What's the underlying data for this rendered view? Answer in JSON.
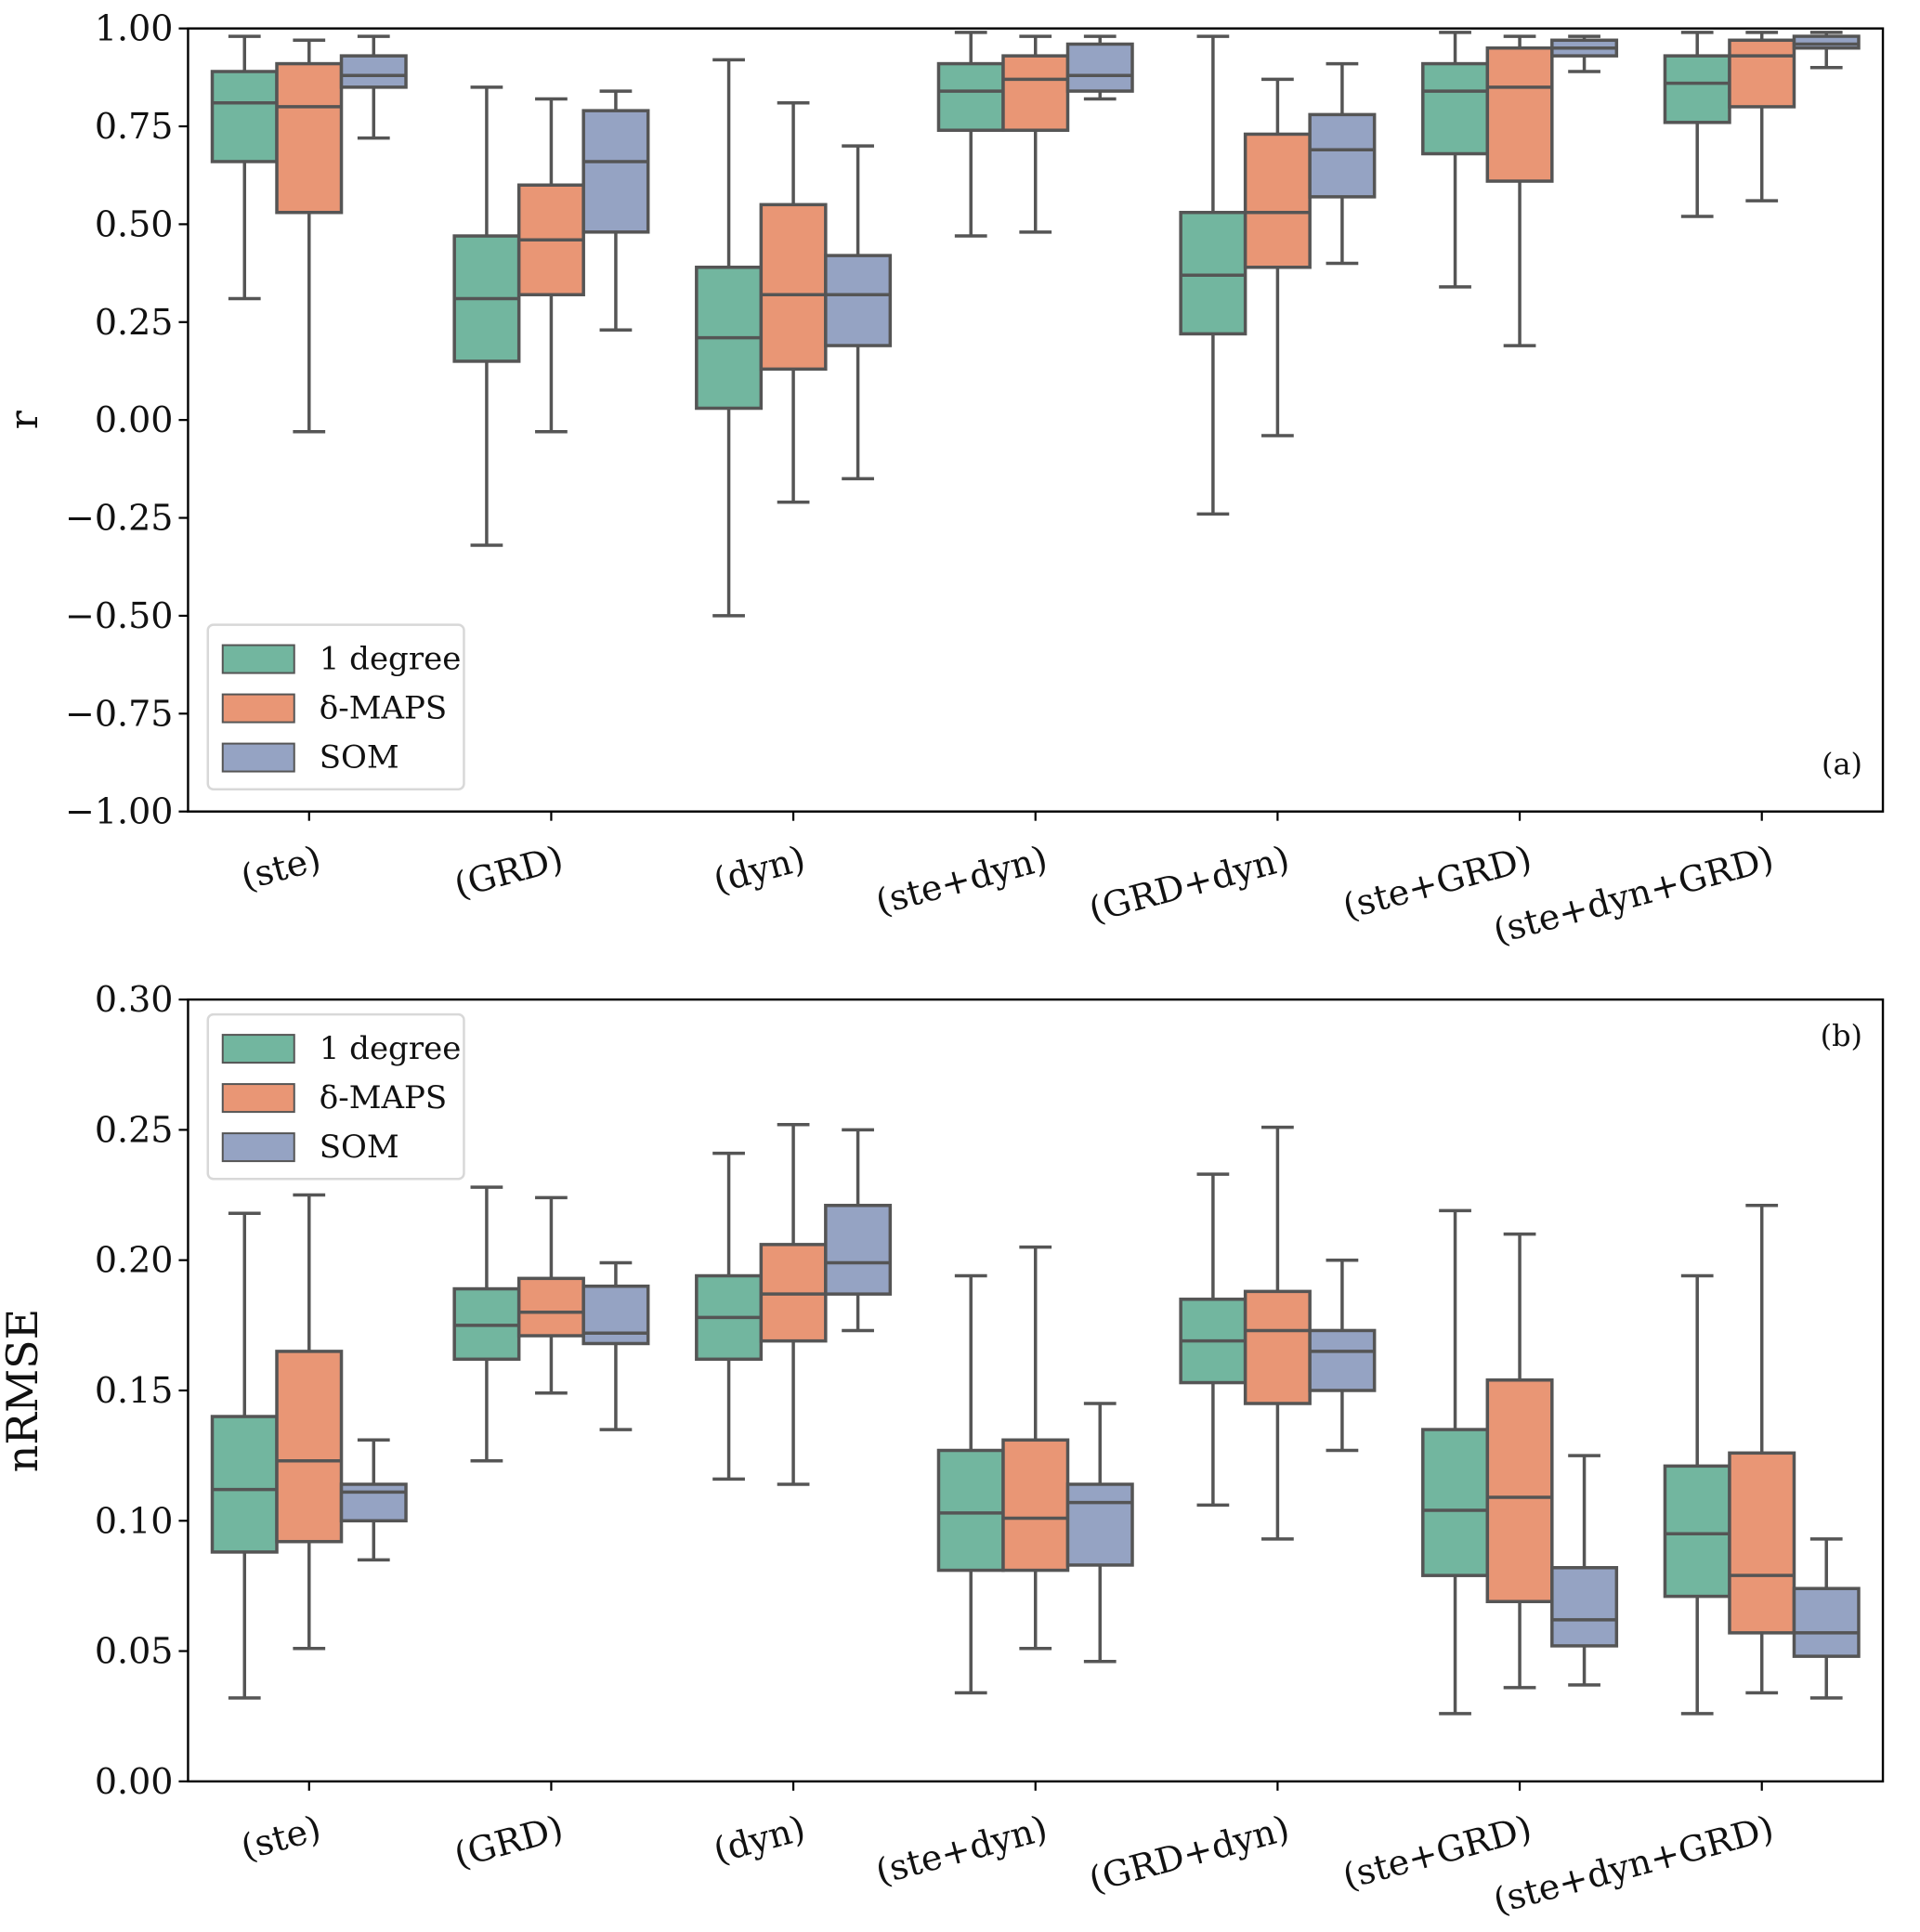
{
  "chart_data": [
    {
      "type": "box",
      "panel_label": "(a)",
      "ylabel": "r",
      "xlabel": "",
      "ylim": [
        -1.0,
        1.0
      ],
      "yticks": [
        -1.0,
        -0.75,
        -0.5,
        -0.25,
        0.0,
        0.25,
        0.5,
        0.75,
        1.0
      ],
      "ytick_labels": [
        "−1.00",
        "−0.75",
        "−0.50",
        "−0.25",
        "0.00",
        "0.25",
        "0.50",
        "0.75",
        "1.00"
      ],
      "categories": [
        "(ste)",
        "(GRD)",
        "(dyn)",
        "(ste+dyn)",
        "(GRD+dyn)",
        "(ste+GRD)",
        "(ste+dyn+GRD)"
      ],
      "legend": {
        "placement": "lower-left",
        "entries": [
          "1 degree",
          "δ-MAPS",
          "SOM"
        ]
      },
      "grid": false,
      "series": [
        {
          "name": "1 degree",
          "color": "#72b69f",
          "boxes": [
            {
              "whislo": 0.31,
              "q1": 0.66,
              "med": 0.81,
              "q3": 0.89,
              "whishi": 0.98
            },
            {
              "whislo": -0.32,
              "q1": 0.15,
              "med": 0.31,
              "q3": 0.47,
              "whishi": 0.85
            },
            {
              "whislo": -0.5,
              "q1": 0.03,
              "med": 0.21,
              "q3": 0.39,
              "whishi": 0.92
            },
            {
              "whislo": 0.47,
              "q1": 0.74,
              "med": 0.84,
              "q3": 0.91,
              "whishi": 0.99
            },
            {
              "whislo": -0.24,
              "q1": 0.22,
              "med": 0.37,
              "q3": 0.53,
              "whishi": 0.98
            },
            {
              "whislo": 0.34,
              "q1": 0.68,
              "med": 0.84,
              "q3": 0.91,
              "whishi": 0.99
            },
            {
              "whislo": 0.52,
              "q1": 0.76,
              "med": 0.86,
              "q3": 0.93,
              "whishi": 0.99
            }
          ]
        },
        {
          "name": "δ-MAPS",
          "color": "#e99675",
          "boxes": [
            {
              "whislo": -0.03,
              "q1": 0.53,
              "med": 0.8,
              "q3": 0.91,
              "whishi": 0.97
            },
            {
              "whislo": -0.03,
              "q1": 0.32,
              "med": 0.46,
              "q3": 0.6,
              "whishi": 0.82
            },
            {
              "whislo": -0.21,
              "q1": 0.13,
              "med": 0.32,
              "q3": 0.55,
              "whishi": 0.81
            },
            {
              "whislo": 0.48,
              "q1": 0.74,
              "med": 0.87,
              "q3": 0.93,
              "whishi": 0.98
            },
            {
              "whislo": -0.04,
              "q1": 0.39,
              "med": 0.53,
              "q3": 0.73,
              "whishi": 0.87
            },
            {
              "whislo": 0.19,
              "q1": 0.61,
              "med": 0.85,
              "q3": 0.95,
              "whishi": 0.98
            },
            {
              "whislo": 0.56,
              "q1": 0.8,
              "med": 0.93,
              "q3": 0.97,
              "whishi": 0.99
            }
          ]
        },
        {
          "name": "SOM",
          "color": "#95a3c3",
          "boxes": [
            {
              "whislo": 0.72,
              "q1": 0.85,
              "med": 0.88,
              "q3": 0.93,
              "whishi": 0.98
            },
            {
              "whislo": 0.23,
              "q1": 0.48,
              "med": 0.66,
              "q3": 0.79,
              "whishi": 0.84
            },
            {
              "whislo": -0.15,
              "q1": 0.19,
              "med": 0.32,
              "q3": 0.42,
              "whishi": 0.7
            },
            {
              "whislo": 0.82,
              "q1": 0.84,
              "med": 0.88,
              "q3": 0.96,
              "whishi": 0.98
            },
            {
              "whislo": 0.4,
              "q1": 0.57,
              "med": 0.69,
              "q3": 0.78,
              "whishi": 0.91
            },
            {
              "whislo": 0.89,
              "q1": 0.93,
              "med": 0.95,
              "q3": 0.97,
              "whishi": 0.98
            },
            {
              "whislo": 0.9,
              "q1": 0.95,
              "med": 0.96,
              "q3": 0.98,
              "whishi": 0.99
            }
          ]
        }
      ]
    },
    {
      "type": "box",
      "panel_label": "(b)",
      "ylabel": "nRMSE",
      "xlabel": "",
      "ylim": [
        0.0,
        0.3
      ],
      "yticks": [
        0.0,
        0.05,
        0.1,
        0.15,
        0.2,
        0.25,
        0.3
      ],
      "ytick_labels": [
        "0.00",
        "0.05",
        "0.10",
        "0.15",
        "0.20",
        "0.25",
        "0.30"
      ],
      "categories": [
        "(ste)",
        "(GRD)",
        "(dyn)",
        "(ste+dyn)",
        "(GRD+dyn)",
        "(ste+GRD)",
        "(ste+dyn+GRD)"
      ],
      "legend": {
        "placement": "upper-left",
        "entries": [
          "1 degree",
          "δ-MAPS",
          "SOM"
        ]
      },
      "grid": false,
      "series": [
        {
          "name": "1 degree",
          "color": "#72b69f",
          "boxes": [
            {
              "whislo": 0.032,
              "q1": 0.088,
              "med": 0.112,
              "q3": 0.14,
              "whishi": 0.218
            },
            {
              "whislo": 0.123,
              "q1": 0.162,
              "med": 0.175,
              "q3": 0.189,
              "whishi": 0.228
            },
            {
              "whislo": 0.116,
              "q1": 0.162,
              "med": 0.178,
              "q3": 0.194,
              "whishi": 0.241
            },
            {
              "whislo": 0.034,
              "q1": 0.081,
              "med": 0.103,
              "q3": 0.127,
              "whishi": 0.194
            },
            {
              "whislo": 0.106,
              "q1": 0.153,
              "med": 0.169,
              "q3": 0.185,
              "whishi": 0.233
            },
            {
              "whislo": 0.026,
              "q1": 0.079,
              "med": 0.104,
              "q3": 0.135,
              "whishi": 0.219
            },
            {
              "whislo": 0.026,
              "q1": 0.071,
              "med": 0.095,
              "q3": 0.121,
              "whishi": 0.194
            }
          ]
        },
        {
          "name": "δ-MAPS",
          "color": "#e99675",
          "boxes": [
            {
              "whislo": 0.051,
              "q1": 0.092,
              "med": 0.123,
              "q3": 0.165,
              "whishi": 0.225
            },
            {
              "whislo": 0.149,
              "q1": 0.171,
              "med": 0.18,
              "q3": 0.193,
              "whishi": 0.224
            },
            {
              "whislo": 0.114,
              "q1": 0.169,
              "med": 0.187,
              "q3": 0.206,
              "whishi": 0.252
            },
            {
              "whislo": 0.051,
              "q1": 0.081,
              "med": 0.101,
              "q3": 0.131,
              "whishi": 0.205
            },
            {
              "whislo": 0.093,
              "q1": 0.145,
              "med": 0.173,
              "q3": 0.188,
              "whishi": 0.251
            },
            {
              "whislo": 0.036,
              "q1": 0.069,
              "med": 0.109,
              "q3": 0.154,
              "whishi": 0.21
            },
            {
              "whislo": 0.034,
              "q1": 0.057,
              "med": 0.079,
              "q3": 0.126,
              "whishi": 0.221
            }
          ]
        },
        {
          "name": "SOM",
          "color": "#95a3c3",
          "boxes": [
            {
              "whislo": 0.085,
              "q1": 0.1,
              "med": 0.111,
              "q3": 0.114,
              "whishi": 0.131
            },
            {
              "whislo": 0.135,
              "q1": 0.168,
              "med": 0.172,
              "q3": 0.19,
              "whishi": 0.199
            },
            {
              "whislo": 0.173,
              "q1": 0.187,
              "med": 0.199,
              "q3": 0.221,
              "whishi": 0.25
            },
            {
              "whislo": 0.046,
              "q1": 0.083,
              "med": 0.107,
              "q3": 0.114,
              "whishi": 0.145
            },
            {
              "whislo": 0.127,
              "q1": 0.15,
              "med": 0.165,
              "q3": 0.173,
              "whishi": 0.2
            },
            {
              "whislo": 0.037,
              "q1": 0.052,
              "med": 0.062,
              "q3": 0.082,
              "whishi": 0.125
            },
            {
              "whislo": 0.032,
              "q1": 0.048,
              "med": 0.057,
              "q3": 0.074,
              "whishi": 0.093
            }
          ]
        }
      ]
    }
  ]
}
